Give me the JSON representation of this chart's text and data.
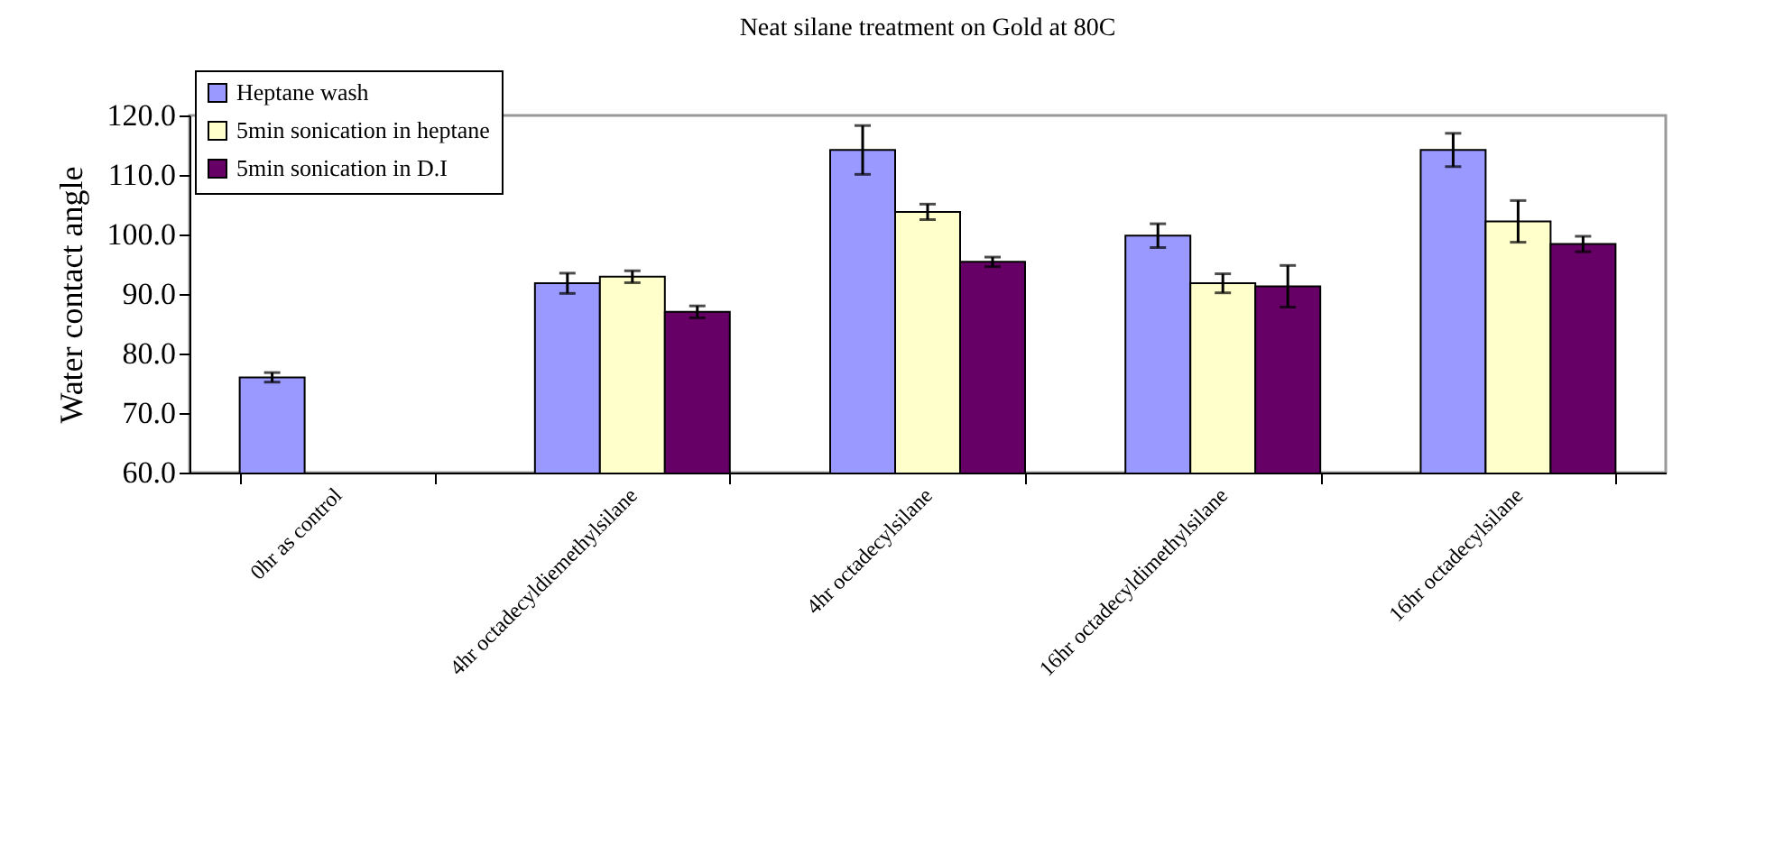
{
  "chart_data": {
    "type": "bar",
    "title": "Neat silane treatment on Gold at 80C",
    "ylabel": "Water contact angle",
    "categories": [
      "0hr as control",
      "4hr octadecyldiemethylsilane",
      "4hr octadecylsilane",
      "16hr octadecyldimethylsilane",
      "16hr octadecylsilane"
    ],
    "series": [
      {
        "name": "Heptane wash",
        "color": "#9999ff",
        "values": [
          76.0,
          91.8,
          114.2,
          99.8,
          114.2
        ],
        "errors": [
          0.8,
          1.7,
          4.1,
          2.0,
          2.8
        ]
      },
      {
        "name": "5min sonication in heptane",
        "color": "#ffffcc",
        "values": [
          null,
          92.9,
          103.8,
          91.8,
          102.2
        ],
        "errors": [
          null,
          1.0,
          1.3,
          1.6,
          3.5
        ]
      },
      {
        "name": "5min sonication in D.I",
        "color": "#660066",
        "values": [
          null,
          87.0,
          95.4,
          91.3,
          98.4
        ],
        "errors": [
          null,
          1.0,
          0.8,
          3.5,
          1.3
        ]
      }
    ],
    "ylim": [
      60,
      120
    ],
    "yticks": [
      {
        "value": 60,
        "label": "60.0"
      },
      {
        "value": 70,
        "label": "70.0"
      },
      {
        "value": 80,
        "label": "80.0"
      },
      {
        "value": 90,
        "label": "90.0"
      },
      {
        "value": 100,
        "label": "100.0"
      },
      {
        "value": 110,
        "label": "110.0"
      },
      {
        "value": 120,
        "label": "120.0"
      }
    ],
    "legend": "top left",
    "grid": false
  }
}
